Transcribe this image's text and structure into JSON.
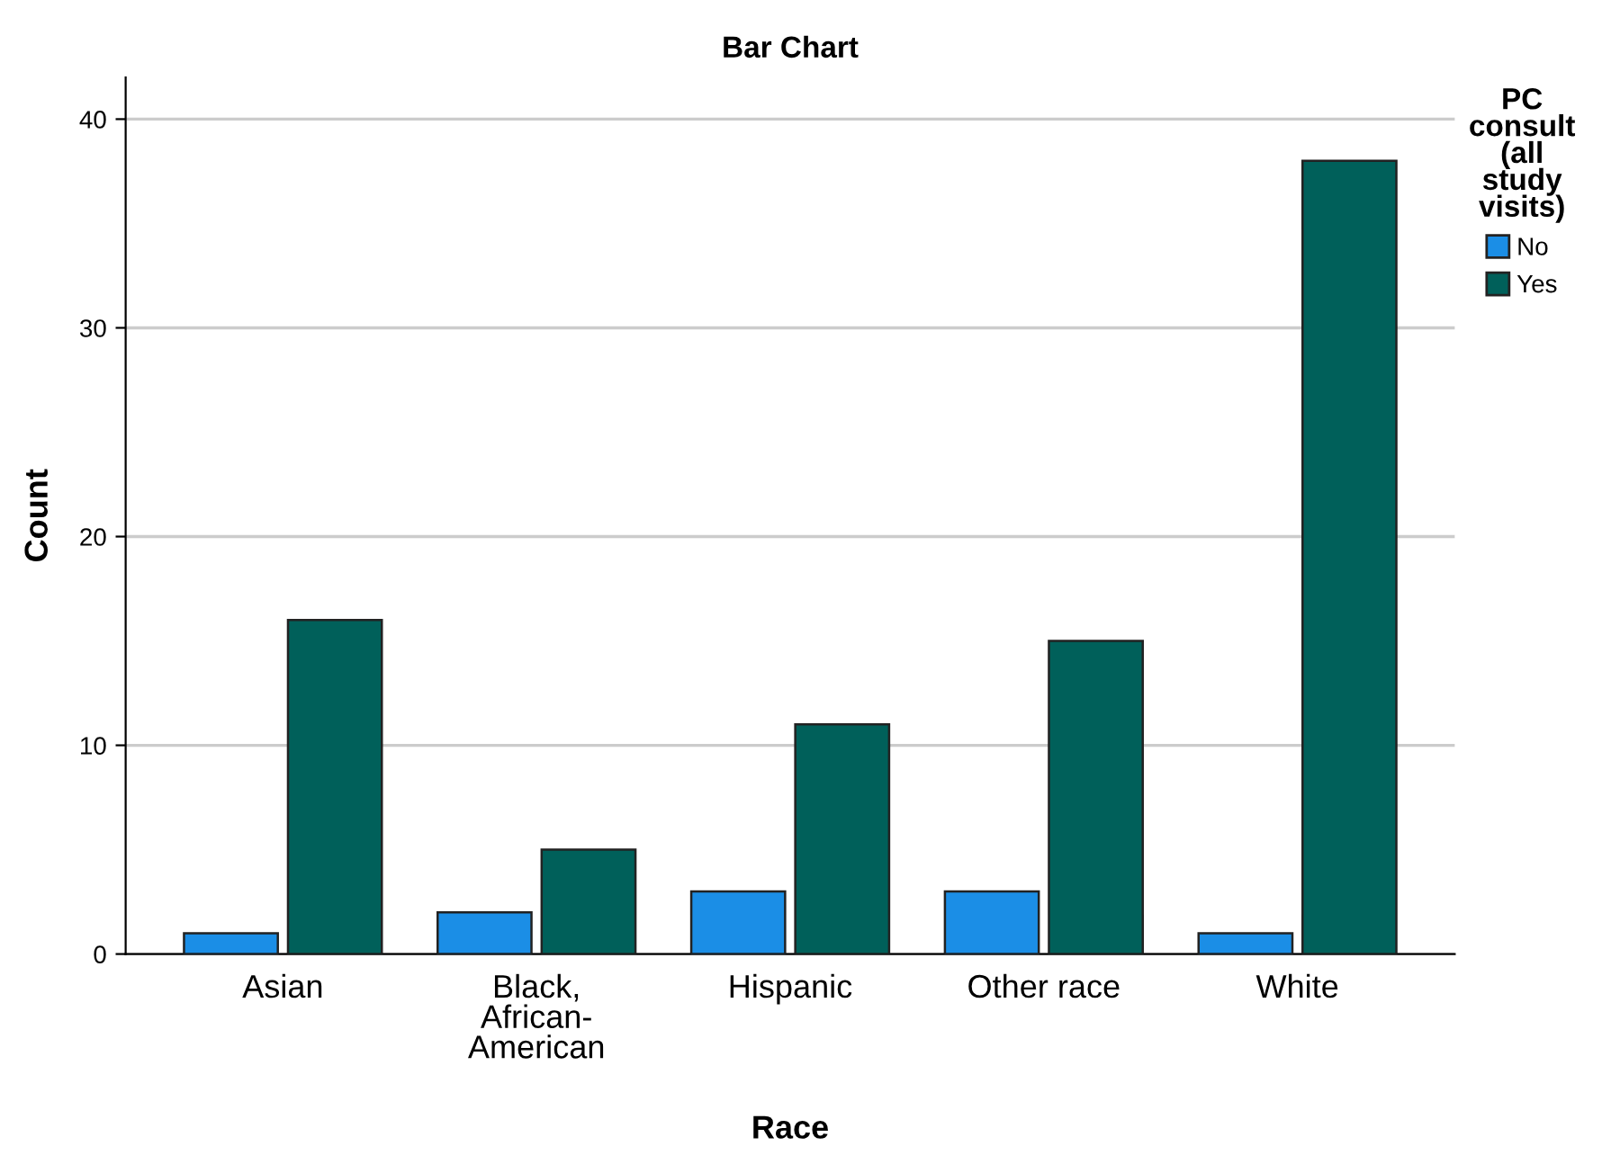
{
  "chart_data": {
    "type": "bar",
    "title": "Bar Chart",
    "xlabel": "Race",
    "ylabel": "Count",
    "legend_title": "PC consult (all study visits)",
    "categories": [
      "Asian",
      "Black, African-American",
      "Hispanic",
      "Other race",
      "White"
    ],
    "series": [
      {
        "name": "No",
        "color": "#1b8ee6",
        "values": [
          1,
          2,
          3,
          3,
          1
        ]
      },
      {
        "name": "Yes",
        "color": "#00605a",
        "values": [
          16,
          5,
          11,
          15,
          38
        ]
      }
    ],
    "ylim": [
      0,
      42
    ],
    "yticks": [
      0,
      10,
      20,
      30,
      40
    ],
    "grid": "y",
    "legend": "top right"
  }
}
